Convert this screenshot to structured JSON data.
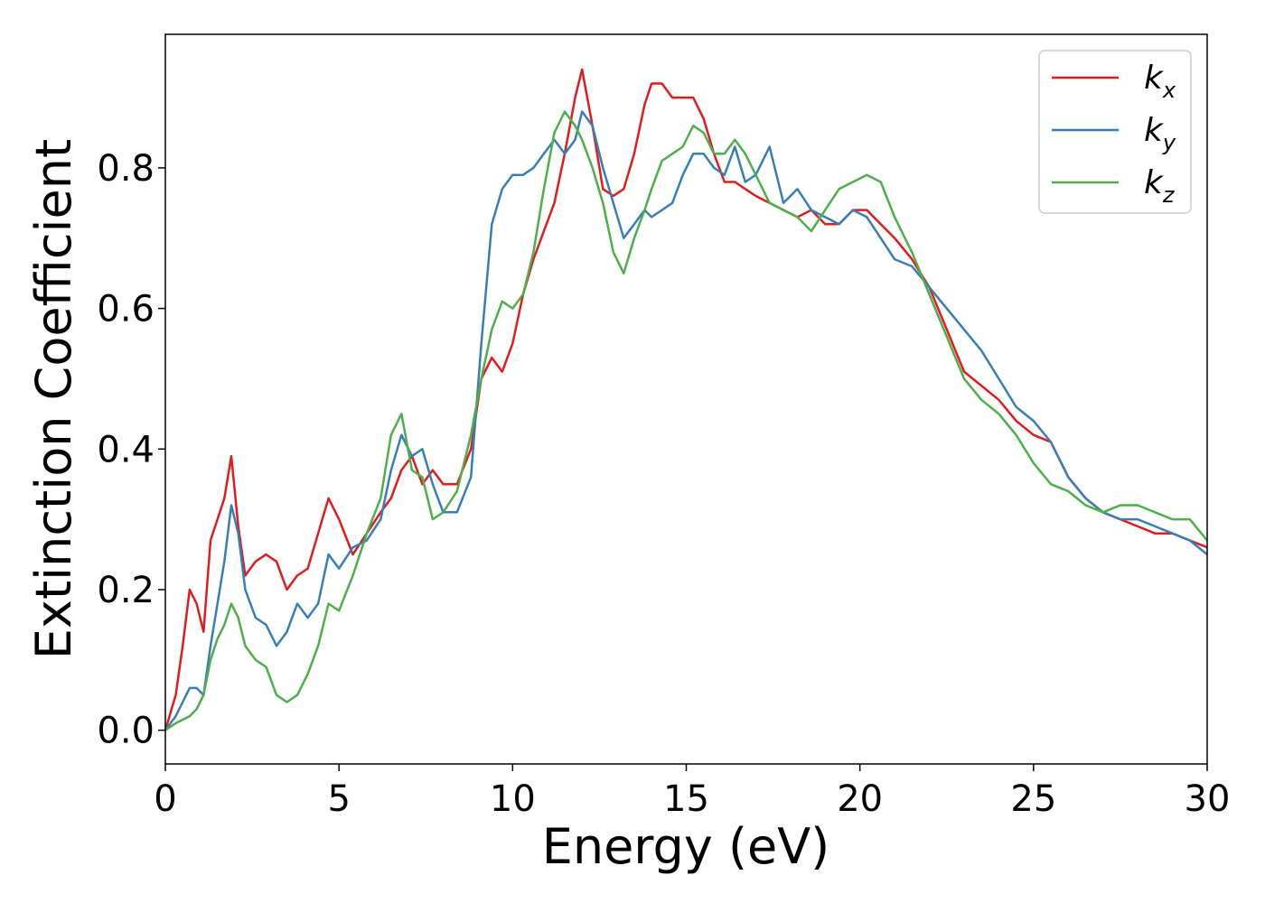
{
  "chart_data": {
    "type": "line",
    "title": "",
    "xlabel": "Energy (eV)",
    "ylabel": "Extinction Coefficient",
    "xlim": [
      0,
      30
    ],
    "ylim": [
      -0.048,
      0.99
    ],
    "xticks": [
      "0",
      "5",
      "10",
      "15",
      "20",
      "25",
      "30"
    ],
    "yticks": [
      "0.0",
      "0.2",
      "0.4",
      "0.6",
      "0.8"
    ],
    "grid": false,
    "legend_position": "top-right",
    "series": [
      {
        "name": "kx",
        "name_base": "k",
        "name_sub": "x",
        "color": "#e41a1c",
        "x": [
          0,
          0.3,
          0.5,
          0.7,
          0.9,
          1.1,
          1.3,
          1.5,
          1.7,
          1.9,
          2.1,
          2.3,
          2.6,
          2.9,
          3.2,
          3.5,
          3.8,
          4.1,
          4.4,
          4.7,
          5.0,
          5.4,
          5.8,
          6.2,
          6.5,
          6.8,
          7.1,
          7.4,
          7.7,
          8.0,
          8.4,
          8.8,
          9.1,
          9.4,
          9.7,
          10.0,
          10.3,
          10.6,
          10.9,
          11.2,
          11.5,
          11.8,
          12.0,
          12.3,
          12.6,
          12.9,
          13.2,
          13.5,
          13.8,
          14.0,
          14.3,
          14.6,
          14.9,
          15.2,
          15.5,
          15.8,
          16.1,
          16.4,
          16.7,
          17.0,
          17.4,
          17.8,
          18.2,
          18.6,
          19.0,
          19.4,
          19.8,
          20.2,
          20.6,
          21.0,
          21.5,
          22.0,
          22.5,
          23.0,
          23.5,
          24.0,
          24.5,
          25.0,
          25.5,
          26.0,
          26.5,
          27.0,
          27.5,
          28.0,
          28.5,
          29.0,
          29.5,
          30.0
        ],
        "y": [
          0,
          0.05,
          0.12,
          0.2,
          0.18,
          0.14,
          0.27,
          0.3,
          0.33,
          0.39,
          0.29,
          0.22,
          0.24,
          0.25,
          0.24,
          0.2,
          0.22,
          0.23,
          0.28,
          0.33,
          0.3,
          0.25,
          0.28,
          0.31,
          0.33,
          0.37,
          0.39,
          0.35,
          0.37,
          0.35,
          0.35,
          0.4,
          0.5,
          0.53,
          0.51,
          0.55,
          0.62,
          0.67,
          0.71,
          0.75,
          0.82,
          0.9,
          0.94,
          0.86,
          0.77,
          0.76,
          0.77,
          0.82,
          0.89,
          0.92,
          0.92,
          0.9,
          0.9,
          0.9,
          0.87,
          0.82,
          0.78,
          0.78,
          0.77,
          0.76,
          0.75,
          0.74,
          0.73,
          0.74,
          0.72,
          0.72,
          0.74,
          0.74,
          0.72,
          0.7,
          0.67,
          0.63,
          0.57,
          0.51,
          0.49,
          0.47,
          0.44,
          0.42,
          0.41,
          0.36,
          0.33,
          0.31,
          0.3,
          0.29,
          0.28,
          0.28,
          0.27,
          0.26
        ]
      },
      {
        "name": "ky",
        "name_base": "k",
        "name_sub": "y",
        "color": "#377eb8",
        "x": [
          0,
          0.3,
          0.5,
          0.7,
          0.9,
          1.1,
          1.3,
          1.5,
          1.7,
          1.9,
          2.1,
          2.3,
          2.6,
          2.9,
          3.2,
          3.5,
          3.8,
          4.1,
          4.4,
          4.7,
          5.0,
          5.4,
          5.8,
          6.2,
          6.5,
          6.8,
          7.1,
          7.4,
          7.7,
          8.0,
          8.4,
          8.8,
          9.1,
          9.4,
          9.7,
          10.0,
          10.3,
          10.6,
          10.9,
          11.2,
          11.5,
          11.8,
          12.0,
          12.3,
          12.6,
          12.9,
          13.2,
          13.5,
          13.8,
          14.0,
          14.3,
          14.6,
          14.9,
          15.2,
          15.5,
          15.8,
          16.1,
          16.4,
          16.7,
          17.0,
          17.4,
          17.8,
          18.2,
          18.6,
          19.0,
          19.4,
          19.8,
          20.2,
          20.6,
          21.0,
          21.5,
          22.0,
          22.5,
          23.0,
          23.5,
          24.0,
          24.5,
          25.0,
          25.5,
          26.0,
          26.5,
          27.0,
          27.5,
          28.0,
          28.5,
          29.0,
          29.5,
          30.0
        ],
        "y": [
          0,
          0.02,
          0.04,
          0.06,
          0.06,
          0.05,
          0.12,
          0.18,
          0.24,
          0.32,
          0.28,
          0.2,
          0.16,
          0.15,
          0.12,
          0.14,
          0.18,
          0.16,
          0.18,
          0.25,
          0.23,
          0.26,
          0.27,
          0.3,
          0.37,
          0.42,
          0.39,
          0.4,
          0.35,
          0.31,
          0.31,
          0.36,
          0.55,
          0.72,
          0.77,
          0.79,
          0.79,
          0.8,
          0.82,
          0.84,
          0.82,
          0.84,
          0.88,
          0.86,
          0.8,
          0.75,
          0.7,
          0.72,
          0.74,
          0.73,
          0.74,
          0.75,
          0.79,
          0.82,
          0.82,
          0.8,
          0.79,
          0.83,
          0.78,
          0.79,
          0.83,
          0.75,
          0.77,
          0.74,
          0.73,
          0.72,
          0.74,
          0.73,
          0.7,
          0.67,
          0.66,
          0.63,
          0.6,
          0.57,
          0.54,
          0.5,
          0.46,
          0.44,
          0.41,
          0.36,
          0.33,
          0.31,
          0.3,
          0.3,
          0.29,
          0.28,
          0.27,
          0.25
        ]
      },
      {
        "name": "kz",
        "name_base": "k",
        "name_sub": "z",
        "color": "#4daf4a",
        "x": [
          0,
          0.3,
          0.5,
          0.7,
          0.9,
          1.1,
          1.3,
          1.5,
          1.7,
          1.9,
          2.1,
          2.3,
          2.6,
          2.9,
          3.2,
          3.5,
          3.8,
          4.1,
          4.4,
          4.7,
          5.0,
          5.4,
          5.8,
          6.2,
          6.5,
          6.8,
          7.1,
          7.4,
          7.7,
          8.0,
          8.4,
          8.8,
          9.1,
          9.4,
          9.7,
          10.0,
          10.3,
          10.6,
          10.9,
          11.2,
          11.5,
          11.8,
          12.0,
          12.3,
          12.6,
          12.9,
          13.2,
          13.5,
          13.8,
          14.0,
          14.3,
          14.6,
          14.9,
          15.2,
          15.5,
          15.8,
          16.1,
          16.4,
          16.7,
          17.0,
          17.4,
          17.8,
          18.2,
          18.6,
          19.0,
          19.4,
          19.8,
          20.2,
          20.6,
          21.0,
          21.5,
          22.0,
          22.5,
          23.0,
          23.5,
          24.0,
          24.5,
          25.0,
          25.5,
          26.0,
          26.5,
          27.0,
          27.5,
          28.0,
          28.5,
          29.0,
          29.5,
          30.0
        ],
        "y": [
          0,
          0.01,
          0.015,
          0.02,
          0.03,
          0.05,
          0.1,
          0.13,
          0.15,
          0.18,
          0.16,
          0.12,
          0.1,
          0.09,
          0.05,
          0.04,
          0.05,
          0.08,
          0.12,
          0.18,
          0.17,
          0.22,
          0.28,
          0.33,
          0.42,
          0.45,
          0.37,
          0.36,
          0.3,
          0.31,
          0.34,
          0.42,
          0.5,
          0.57,
          0.61,
          0.6,
          0.62,
          0.68,
          0.77,
          0.85,
          0.88,
          0.86,
          0.84,
          0.8,
          0.75,
          0.68,
          0.65,
          0.7,
          0.74,
          0.77,
          0.81,
          0.82,
          0.83,
          0.86,
          0.85,
          0.82,
          0.82,
          0.84,
          0.82,
          0.79,
          0.75,
          0.74,
          0.73,
          0.71,
          0.74,
          0.77,
          0.78,
          0.79,
          0.78,
          0.73,
          0.68,
          0.62,
          0.56,
          0.5,
          0.47,
          0.45,
          0.42,
          0.38,
          0.35,
          0.34,
          0.32,
          0.31,
          0.32,
          0.32,
          0.31,
          0.3,
          0.3,
          0.27
        ]
      }
    ]
  }
}
